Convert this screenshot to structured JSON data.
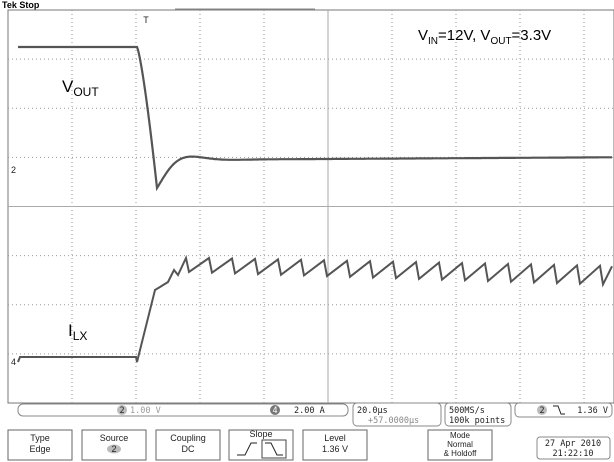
{
  "header": {
    "status": "Tek Stop"
  },
  "markers": {
    "trigger": "T",
    "ch2": "2",
    "ch4": "4"
  },
  "annotations": {
    "vout": {
      "main": "V",
      "sub": "OUT"
    },
    "ilx": {
      "main": "I",
      "sub": "LX"
    },
    "conditions": [
      "V",
      "IN",
      "=12V, V",
      "OUT",
      "=3.3V"
    ]
  },
  "status_bar": {
    "ch2_num": "2",
    "ch2_scale": "1.00 V",
    "ch4_num": "4",
    "ch4_scale": "2.00 A",
    "timebase": "20.0µs",
    "delay": "+57.0000µs",
    "sample_rate": "500MS/s",
    "points": "100k points",
    "trigger_ch": "2",
    "trigger_level": "1.36 V"
  },
  "menu": [
    {
      "title": "Type",
      "value": "Edge"
    },
    {
      "title": "Source",
      "value": "2"
    },
    {
      "title": "Coupling",
      "value": "DC"
    },
    {
      "title": "Slope"
    },
    {
      "title": "Level",
      "value": "1.36 V"
    }
  ],
  "mode": [
    "Mode",
    "Normal",
    "& Holdoff"
  ],
  "datetime": [
    "27 Apr 2010",
    "21:22:10"
  ]
}
